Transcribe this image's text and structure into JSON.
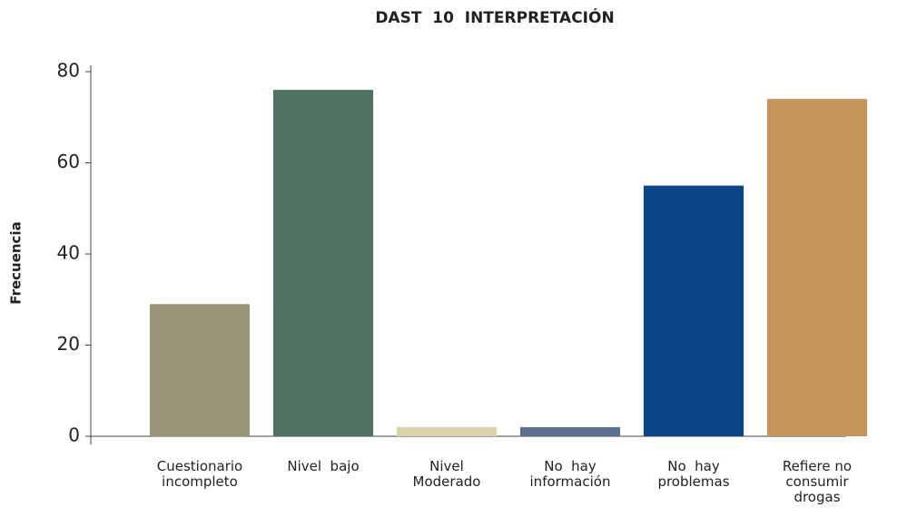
{
  "chart_data": {
    "type": "bar",
    "title": "DAST  10  INTERPRETACIÓN",
    "y_label": "Frecuencia",
    "categories": [
      "Cuestionario\nincompleto",
      "Nivel  bajo",
      "Nivel\nModerado",
      "No  hay\ninformación",
      "No  hay\nproblemas",
      "Refiere no\nconsumir\ndrogas"
    ],
    "values": [
      29,
      76,
      2,
      2,
      55,
      74
    ],
    "colors": [
      "#9a9476",
      "#4f7360",
      "#ddd3aa",
      "#5a7090",
      "#0b4585",
      "#c4955a"
    ],
    "ylim": [
      0,
      80
    ],
    "yticks": [
      0,
      20,
      40,
      60,
      80
    ],
    "grid": false
  }
}
